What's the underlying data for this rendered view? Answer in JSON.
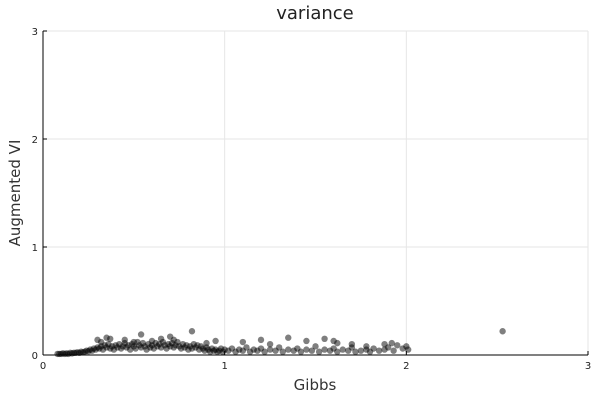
{
  "chart_data": {
    "type": "scatter",
    "title": "variance",
    "xlabel": "Gibbs",
    "ylabel": "Augmented VI",
    "xlim": [
      0,
      3
    ],
    "ylim": [
      0,
      3
    ],
    "xticks": [
      "0",
      "1",
      "2",
      "3"
    ],
    "yticks": [
      "0",
      "1",
      "2",
      "3"
    ],
    "grid": true,
    "marker_color": "#000000",
    "marker_opacity": 0.5,
    "points": [
      [
        0.08,
        0.01
      ],
      [
        0.09,
        0.01
      ],
      [
        0.1,
        0.01
      ],
      [
        0.11,
        0.015
      ],
      [
        0.12,
        0.01
      ],
      [
        0.13,
        0.015
      ],
      [
        0.14,
        0.01
      ],
      [
        0.15,
        0.02
      ],
      [
        0.16,
        0.015
      ],
      [
        0.17,
        0.02
      ],
      [
        0.18,
        0.02
      ],
      [
        0.19,
        0.025
      ],
      [
        0.2,
        0.02
      ],
      [
        0.21,
        0.03
      ],
      [
        0.22,
        0.025
      ],
      [
        0.23,
        0.03
      ],
      [
        0.24,
        0.04
      ],
      [
        0.25,
        0.035
      ],
      [
        0.26,
        0.05
      ],
      [
        0.27,
        0.04
      ],
      [
        0.28,
        0.06
      ],
      [
        0.29,
        0.05
      ],
      [
        0.3,
        0.07
      ],
      [
        0.31,
        0.06
      ],
      [
        0.32,
        0.08
      ],
      [
        0.33,
        0.05
      ],
      [
        0.34,
        0.09
      ],
      [
        0.35,
        0.07
      ],
      [
        0.36,
        0.1
      ],
      [
        0.37,
        0.06
      ],
      [
        0.38,
        0.08
      ],
      [
        0.39,
        0.05
      ],
      [
        0.4,
        0.09
      ],
      [
        0.41,
        0.07
      ],
      [
        0.42,
        0.1
      ],
      [
        0.43,
        0.06
      ],
      [
        0.44,
        0.08
      ],
      [
        0.45,
        0.11
      ],
      [
        0.46,
        0.07
      ],
      [
        0.47,
        0.09
      ],
      [
        0.48,
        0.05
      ],
      [
        0.49,
        0.1
      ],
      [
        0.5,
        0.08
      ],
      [
        0.51,
        0.06
      ],
      [
        0.52,
        0.12
      ],
      [
        0.53,
        0.09
      ],
      [
        0.54,
        0.07
      ],
      [
        0.55,
        0.11
      ],
      [
        0.56,
        0.08
      ],
      [
        0.57,
        0.05
      ],
      [
        0.58,
        0.1
      ],
      [
        0.59,
        0.07
      ],
      [
        0.6,
        0.09
      ],
      [
        0.61,
        0.06
      ],
      [
        0.62,
        0.11
      ],
      [
        0.63,
        0.08
      ],
      [
        0.64,
        0.1
      ],
      [
        0.65,
        0.07
      ],
      [
        0.66,
        0.12
      ],
      [
        0.67,
        0.09
      ],
      [
        0.68,
        0.06
      ],
      [
        0.69,
        0.1
      ],
      [
        0.7,
        0.08
      ],
      [
        0.71,
        0.11
      ],
      [
        0.72,
        0.07
      ],
      [
        0.73,
        0.09
      ],
      [
        0.74,
        0.12
      ],
      [
        0.75,
        0.08
      ],
      [
        0.76,
        0.06
      ],
      [
        0.77,
        0.1
      ],
      [
        0.78,
        0.07
      ],
      [
        0.79,
        0.09
      ],
      [
        0.8,
        0.05
      ],
      [
        0.81,
        0.08
      ],
      [
        0.82,
        0.06
      ],
      [
        0.83,
        0.1
      ],
      [
        0.84,
        0.07
      ],
      [
        0.85,
        0.09
      ],
      [
        0.86,
        0.05
      ],
      [
        0.87,
        0.08
      ],
      [
        0.88,
        0.06
      ],
      [
        0.89,
        0.04
      ],
      [
        0.9,
        0.07
      ],
      [
        0.91,
        0.05
      ],
      [
        0.92,
        0.03
      ],
      [
        0.93,
        0.06
      ],
      [
        0.94,
        0.04
      ],
      [
        0.95,
        0.05
      ],
      [
        0.96,
        0.03
      ],
      [
        0.97,
        0.04
      ],
      [
        0.98,
        0.06
      ],
      [
        0.99,
        0.03
      ],
      [
        1.0,
        0.05
      ],
      [
        1.02,
        0.04
      ],
      [
        1.04,
        0.06
      ],
      [
        1.06,
        0.03
      ],
      [
        1.08,
        0.05
      ],
      [
        1.1,
        0.04
      ],
      [
        1.12,
        0.07
      ],
      [
        1.14,
        0.03
      ],
      [
        1.16,
        0.05
      ],
      [
        1.18,
        0.04
      ],
      [
        1.2,
        0.06
      ],
      [
        1.22,
        0.03
      ],
      [
        1.25,
        0.05
      ],
      [
        1.28,
        0.04
      ],
      [
        1.3,
        0.07
      ],
      [
        1.32,
        0.03
      ],
      [
        1.35,
        0.05
      ],
      [
        1.38,
        0.04
      ],
      [
        1.4,
        0.06
      ],
      [
        1.42,
        0.03
      ],
      [
        1.45,
        0.05
      ],
      [
        1.48,
        0.04
      ],
      [
        1.5,
        0.08
      ],
      [
        1.52,
        0.03
      ],
      [
        1.55,
        0.05
      ],
      [
        1.58,
        0.04
      ],
      [
        1.6,
        0.06
      ],
      [
        1.62,
        0.03
      ],
      [
        1.65,
        0.05
      ],
      [
        1.68,
        0.04
      ],
      [
        1.7,
        0.07
      ],
      [
        1.72,
        0.03
      ],
      [
        1.75,
        0.04
      ],
      [
        1.78,
        0.05
      ],
      [
        1.8,
        0.03
      ],
      [
        1.82,
        0.06
      ],
      [
        1.85,
        0.04
      ],
      [
        1.88,
        0.05
      ],
      [
        1.9,
        0.07
      ],
      [
        1.93,
        0.04
      ],
      [
        1.95,
        0.09
      ],
      [
        1.98,
        0.06
      ],
      [
        2.0,
        0.08
      ],
      [
        2.01,
        0.05
      ],
      [
        0.3,
        0.14
      ],
      [
        0.32,
        0.12
      ],
      [
        0.35,
        0.16
      ],
      [
        0.37,
        0.15
      ],
      [
        0.45,
        0.14
      ],
      [
        0.5,
        0.12
      ],
      [
        0.54,
        0.19
      ],
      [
        0.6,
        0.13
      ],
      [
        0.65,
        0.15
      ],
      [
        0.7,
        0.17
      ],
      [
        0.72,
        0.14
      ],
      [
        0.82,
        0.22
      ],
      [
        0.9,
        0.11
      ],
      [
        0.95,
        0.13
      ],
      [
        1.1,
        0.12
      ],
      [
        1.2,
        0.14
      ],
      [
        1.25,
        0.1
      ],
      [
        1.35,
        0.16
      ],
      [
        1.45,
        0.13
      ],
      [
        1.55,
        0.15
      ],
      [
        1.6,
        0.13
      ],
      [
        1.62,
        0.11
      ],
      [
        1.7,
        0.1
      ],
      [
        1.78,
        0.08
      ],
      [
        1.88,
        0.1
      ],
      [
        1.92,
        0.11
      ],
      [
        2.53,
        0.22
      ]
    ]
  }
}
